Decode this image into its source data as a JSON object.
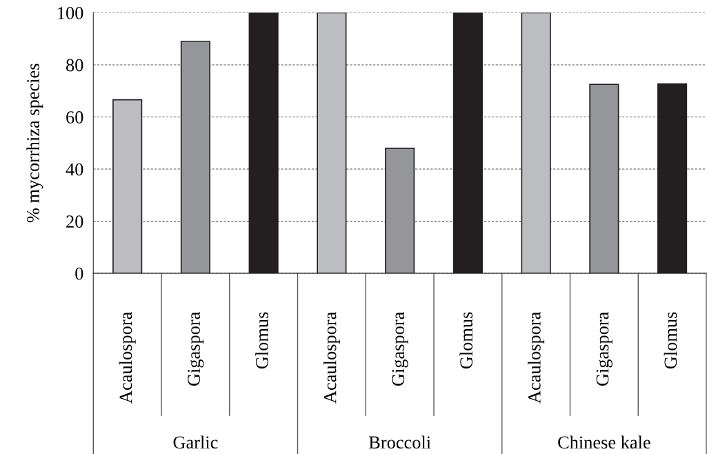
{
  "chart_data": {
    "type": "bar",
    "ylabel": "% mycorrhiza species",
    "categories": [
      "Acaulospora",
      "Gigaspora",
      "Glomus",
      "Acaulospora",
      "Gigaspora",
      "Glomus",
      "Acaulospora",
      "Gigaspora",
      "Glomus"
    ],
    "values": [
      66.6,
      89,
      100,
      100,
      48,
      100,
      100,
      72.5,
      72.7
    ],
    "colors": [
      "#bcbdc0",
      "#959699",
      "#231f20",
      "#bcbdc0",
      "#959699",
      "#231f20",
      "#bcbdc0",
      "#959699",
      "#231f20"
    ],
    "annotations": [
      "Garlic",
      "Broccoli",
      "Chinese kale"
    ],
    "ylim": [
      0,
      100
    ],
    "yticks": [
      0,
      20,
      40,
      60,
      80,
      100
    ],
    "grid": "y"
  }
}
